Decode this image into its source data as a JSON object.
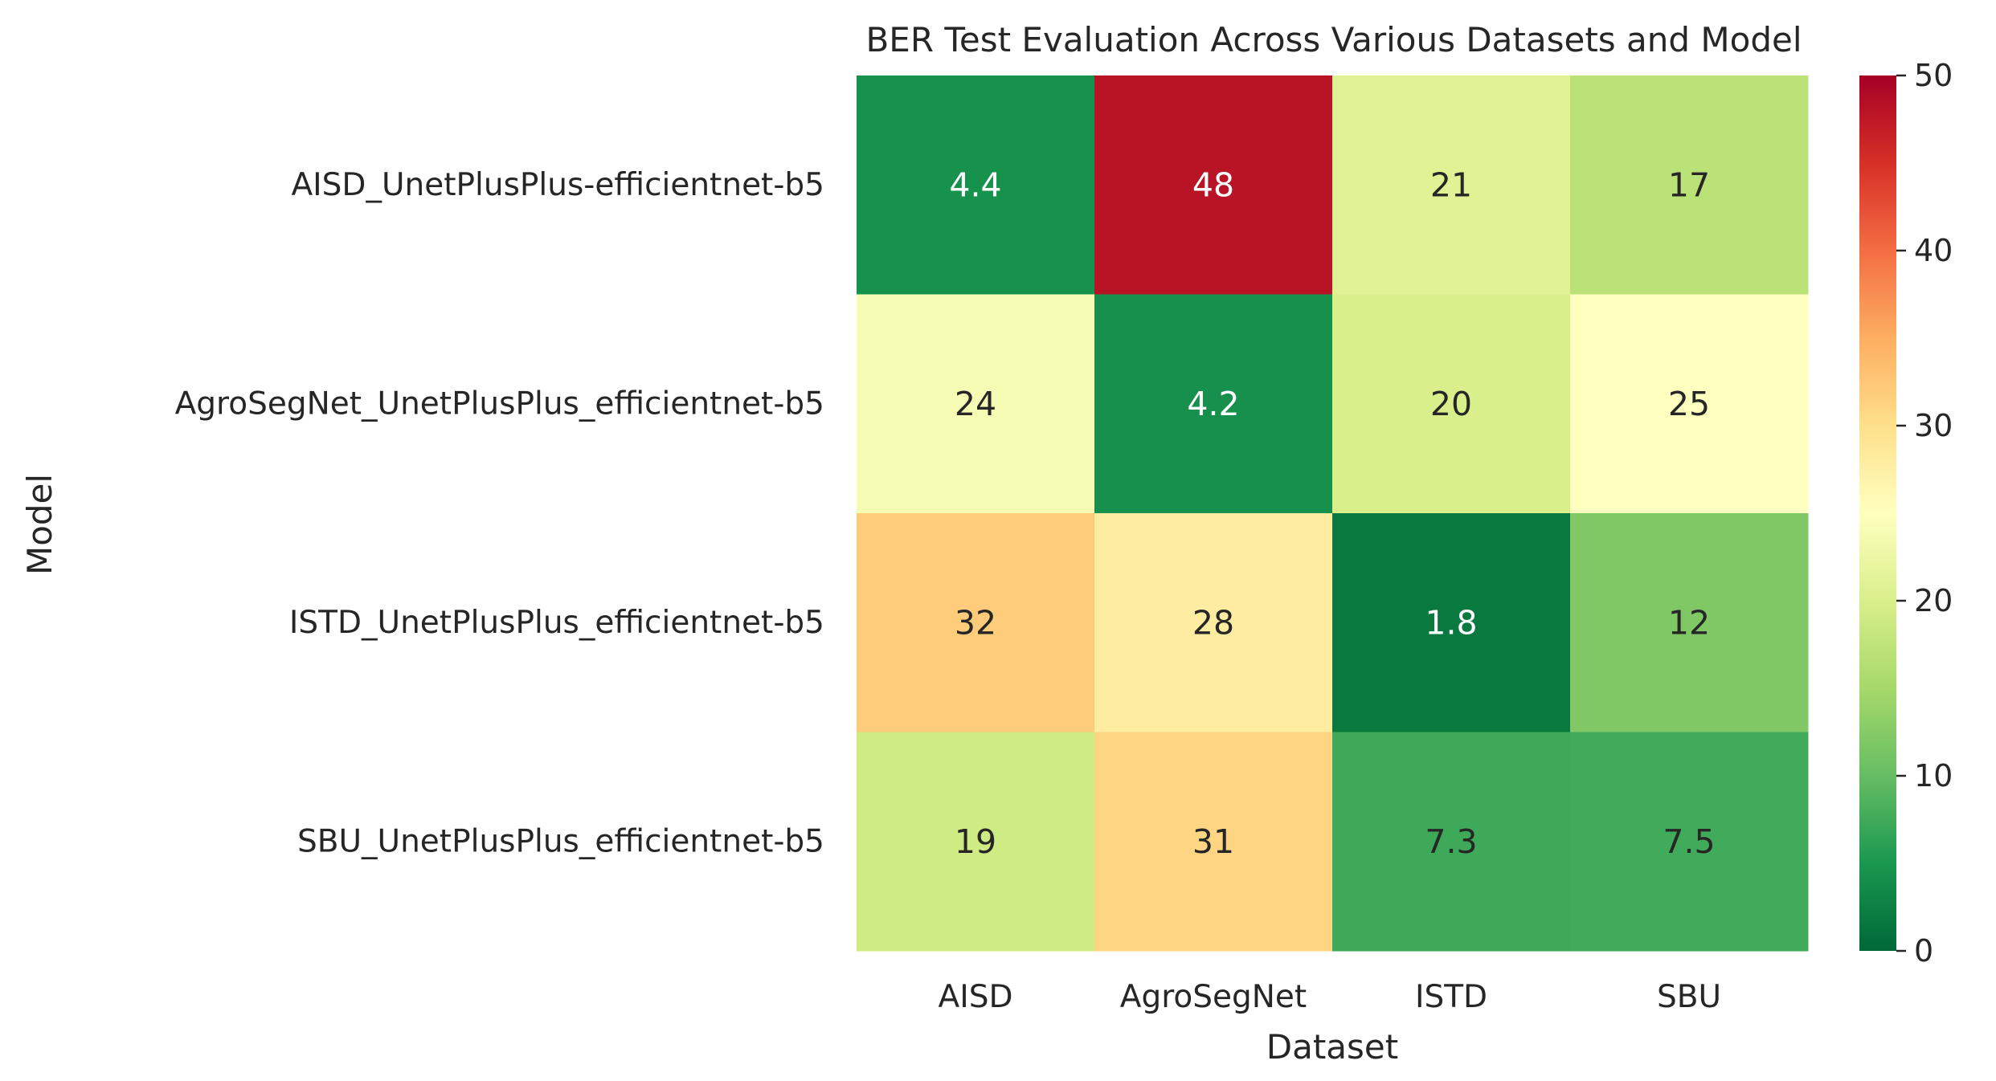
{
  "chart_data": {
    "type": "heatmap",
    "title": "BER Test Evaluation Across Various Datasets and Model",
    "xlabel": "Dataset",
    "ylabel": "Model",
    "x_categories": [
      "AISD",
      "AgroSegNet",
      "ISTD",
      "SBU"
    ],
    "y_categories": [
      "AISD_UnetPlusPlus-efficientnet-b5",
      "AgroSegNet_UnetPlusPlus_efficientnet-b5",
      "ISTD_UnetPlusPlus_efficientnet-b5",
      "SBU_UnetPlusPlus_efficientnet-b5"
    ],
    "values": [
      [
        4.4,
        48,
        21,
        17
      ],
      [
        24,
        4.2,
        20,
        25
      ],
      [
        32,
        28,
        1.8,
        12
      ],
      [
        19,
        31,
        7.3,
        7.5
      ]
    ],
    "annotations": [
      [
        "4.4",
        "48",
        "21",
        "17"
      ],
      [
        "24",
        "4.2",
        "20",
        "25"
      ],
      [
        "32",
        "28",
        "1.8",
        "12"
      ],
      [
        "19",
        "31",
        "7.3",
        "7.5"
      ]
    ],
    "colormap": "RdYlGn_r",
    "vmin": 0,
    "vmax": 50,
    "colorbar_ticks": [
      0,
      10,
      20,
      30,
      40,
      50
    ]
  }
}
